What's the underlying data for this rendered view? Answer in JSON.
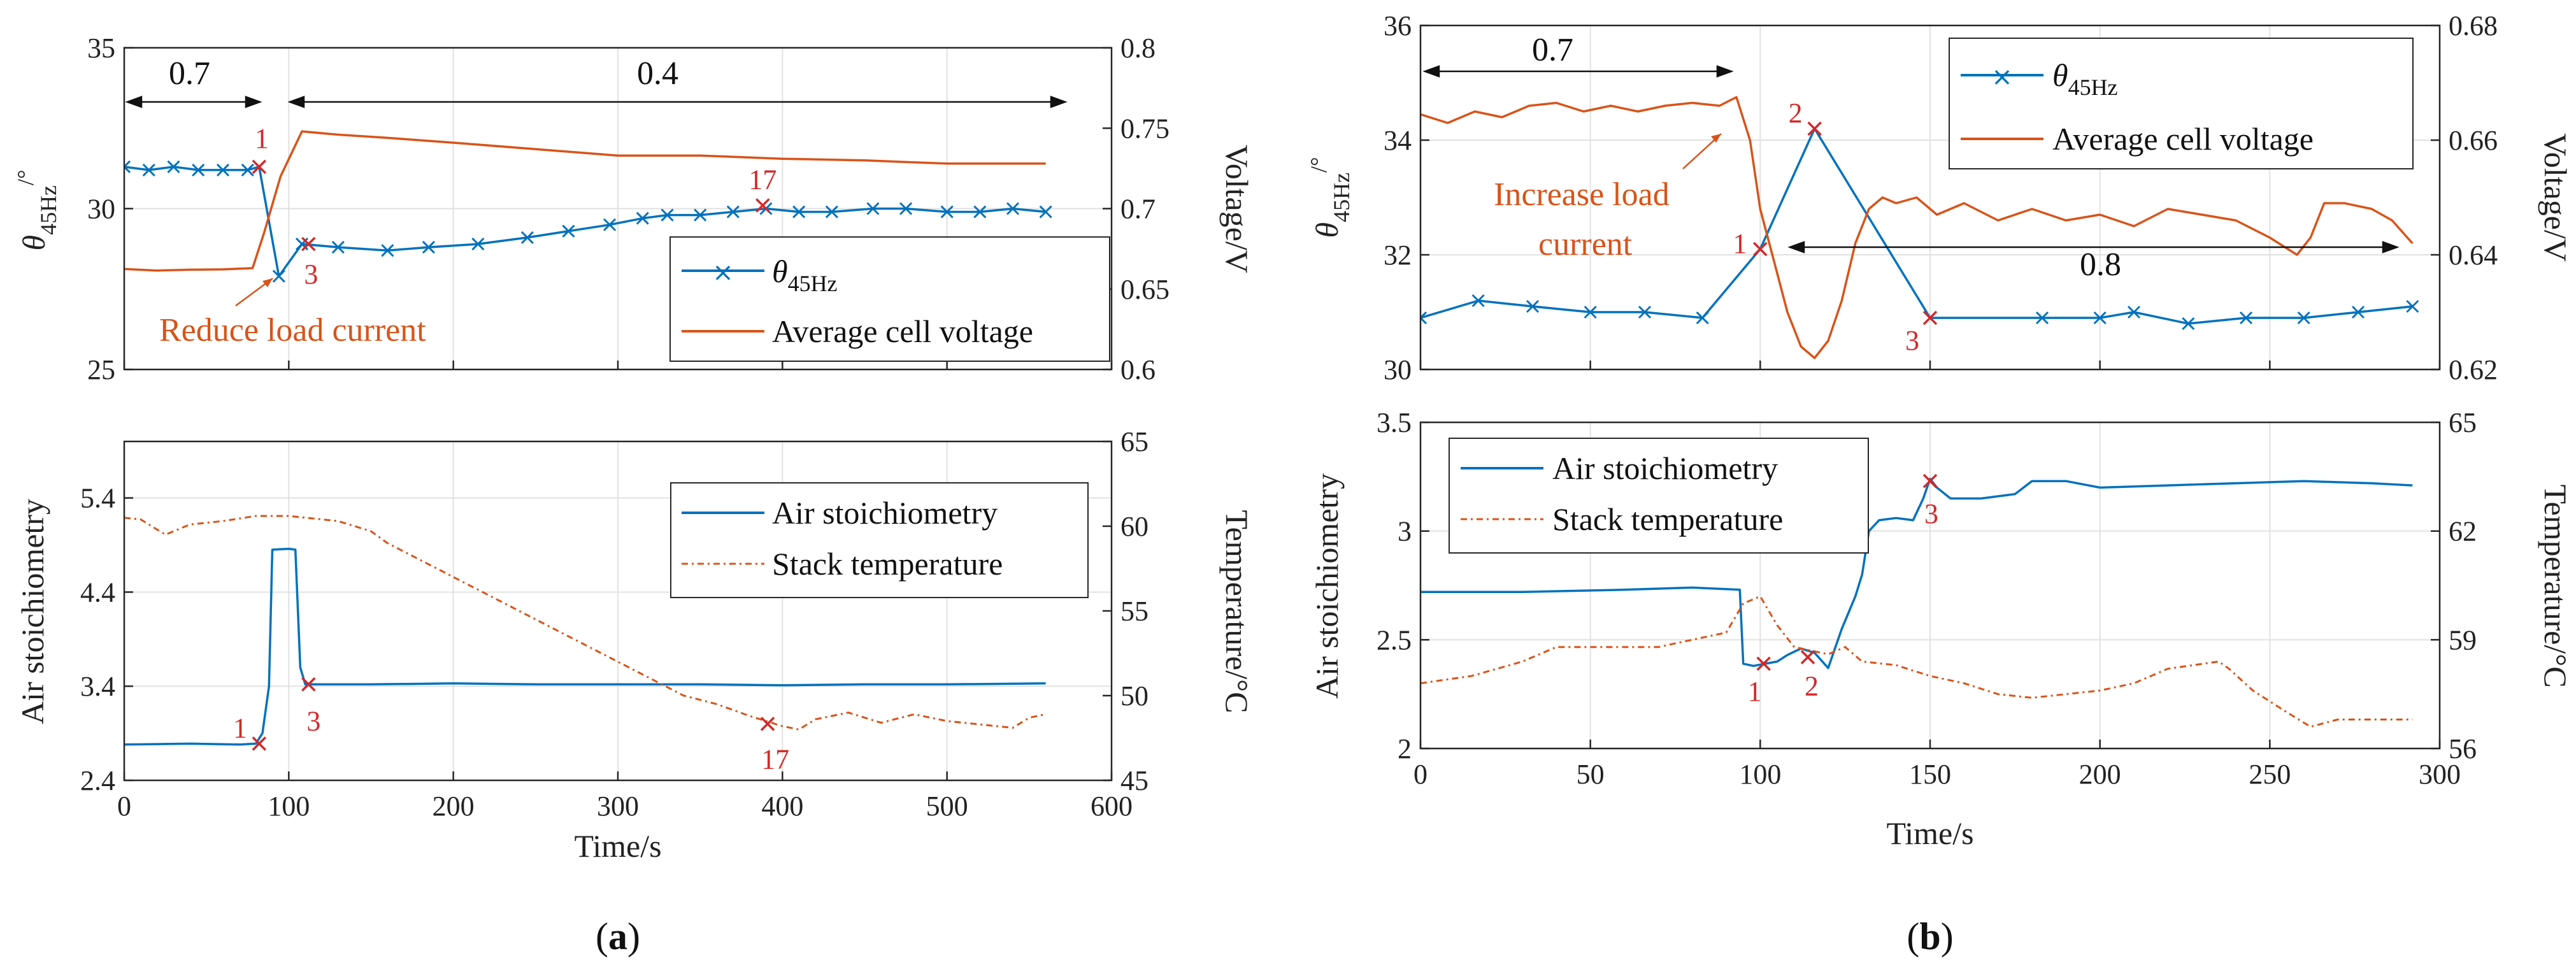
{
  "colors": {
    "blue": "#0072bd",
    "orange": "#d95319",
    "red": "#d62728",
    "axis": "#262626",
    "grid": "#e1e1e1"
  },
  "captions": {
    "a": "a",
    "b": "b"
  },
  "chart_data": [
    {
      "id": "a-top",
      "type": "line",
      "xlim": [
        0,
        600
      ],
      "xticks": [
        0,
        100,
        200,
        300,
        400,
        500,
        600
      ],
      "ylim_left": [
        25,
        35
      ],
      "yticks_left": [
        25,
        30,
        35
      ],
      "ylabel_left": "θ45Hz/°",
      "ylim_right": [
        0.6,
        0.8
      ],
      "yticks_right": [
        0.6,
        0.65,
        0.7,
        0.75,
        0.8
      ],
      "ylabel_right": "Voltage/V",
      "series": [
        {
          "name": "θ45Hz",
          "axis": "left",
          "color": "#0072bd",
          "marker": "x",
          "x": [
            0,
            15,
            30,
            45,
            60,
            75,
            82,
            94,
            108,
            130,
            160,
            185,
            215,
            245,
            270,
            295,
            315,
            330,
            350,
            370,
            390,
            410,
            430,
            455,
            475,
            500,
            520,
            540,
            560
          ],
          "y": [
            31.3,
            31.2,
            31.3,
            31.2,
            31.2,
            31.2,
            31.3,
            27.9,
            28.9,
            28.8,
            28.7,
            28.8,
            28.9,
            29.1,
            29.3,
            29.5,
            29.7,
            29.8,
            29.8,
            29.9,
            30.0,
            29.9,
            29.9,
            30.0,
            30.0,
            29.9,
            29.9,
            30.0,
            29.9
          ]
        },
        {
          "name": "Average cell voltage",
          "axis": "right",
          "color": "#d95319",
          "x": [
            0,
            20,
            40,
            60,
            78,
            85,
            95,
            108,
            130,
            160,
            200,
            250,
            300,
            350,
            400,
            450,
            500,
            560
          ],
          "y": [
            0.6625,
            0.6615,
            0.662,
            0.6622,
            0.663,
            0.685,
            0.72,
            0.748,
            0.746,
            0.744,
            0.741,
            0.737,
            0.733,
            0.733,
            0.731,
            0.73,
            0.728,
            0.728
          ]
        }
      ],
      "marks": [
        {
          "label": "1",
          "x": 82,
          "y": 31.3
        },
        {
          "label": "3",
          "x": 112,
          "y": 28.9
        },
        {
          "label": "17",
          "x": 388,
          "y": 30.1
        }
      ],
      "annotations": [
        {
          "text": "0.7",
          "x": 40,
          "y": 34.0
        },
        {
          "text": "0.4",
          "x": 330,
          "y": 34.0
        },
        {
          "text": "Reduce load current",
          "x": 120,
          "y": 26.3
        }
      ]
    },
    {
      "id": "a-bottom",
      "type": "line",
      "xlim": [
        0,
        600
      ],
      "xticks": [
        0,
        100,
        200,
        300,
        400,
        500,
        600
      ],
      "xlabel": "Time/s",
      "ylim_left": [
        2.4,
        6.0
      ],
      "yticks_left": [
        2.4,
        3.4,
        4.4,
        5.4
      ],
      "ylabel_left": "Air stoichiometry",
      "ylim_right": [
        45,
        65
      ],
      "yticks_right": [
        45,
        50,
        55,
        60,
        65
      ],
      "ylabel_right": "Temperature/°C",
      "series": [
        {
          "name": "Air stoichiometry",
          "axis": "left",
          "color": "#0072bd",
          "x": [
            0,
            40,
            70,
            80,
            84,
            88,
            90,
            100,
            104,
            107,
            110,
            150,
            200,
            250,
            300,
            350,
            400,
            450,
            500,
            560
          ],
          "y": [
            2.78,
            2.79,
            2.78,
            2.79,
            2.9,
            3.4,
            4.85,
            4.86,
            4.85,
            3.6,
            3.42,
            3.42,
            3.43,
            3.42,
            3.42,
            3.42,
            3.41,
            3.42,
            3.42,
            3.43
          ]
        },
        {
          "name": "Stack temperature",
          "axis": "right",
          "color": "#d95319",
          "dash": "6 5",
          "x": [
            0,
            10,
            25,
            40,
            60,
            80,
            100,
            130,
            150,
            160,
            180,
            200,
            250,
            300,
            340,
            360,
            380,
            400,
            410,
            420,
            440,
            460,
            480,
            500,
            520,
            540,
            550,
            560
          ],
          "y": [
            60.5,
            60.4,
            59.5,
            60.1,
            60.3,
            60.6,
            60.6,
            60.3,
            59.7,
            59.0,
            58.0,
            57.0,
            54.5,
            52.0,
            50.0,
            49.5,
            48.8,
            48.2,
            48.0,
            48.6,
            49.0,
            48.4,
            48.9,
            48.5,
            48.3,
            48.1,
            48.7,
            48.9
          ]
        }
      ],
      "marks": [
        {
          "label": "1",
          "x": 82,
          "y": 2.79
        },
        {
          "label": "3",
          "x": 112,
          "y": 3.42
        },
        {
          "label": "17",
          "x": 391,
          "y": 3.0
        }
      ]
    },
    {
      "id": "b-top",
      "type": "line",
      "xlim": [
        0,
        300
      ],
      "xticks": [
        0,
        50,
        100,
        150,
        200,
        250,
        300
      ],
      "ylim_left": [
        30,
        36
      ],
      "yticks_left": [
        30,
        32,
        34,
        36
      ],
      "ylabel_left": "θ45Hz/°",
      "ylim_right": [
        0.62,
        0.68
      ],
      "yticks_right": [
        0.62,
        0.64,
        0.66,
        0.68
      ],
      "ylabel_right": "Voltage/V",
      "series": [
        {
          "name": "θ45Hz",
          "axis": "left",
          "color": "#0072bd",
          "marker": "x",
          "x": [
            0,
            17,
            33,
            50,
            66,
            83,
            100,
            116,
            150,
            183,
            200,
            210,
            226,
            243,
            260,
            276,
            292
          ],
          "y": [
            30.9,
            31.2,
            31.1,
            31.0,
            31.0,
            30.9,
            32.1,
            34.2,
            30.9,
            30.9,
            30.9,
            31.0,
            30.8,
            30.9,
            30.9,
            31.0,
            31.1
          ]
        },
        {
          "name": "Average cell voltage",
          "axis": "right",
          "color": "#d95319",
          "x": [
            0,
            8,
            16,
            24,
            32,
            40,
            48,
            56,
            64,
            72,
            80,
            88,
            93,
            97,
            100,
            104,
            108,
            112,
            116,
            120,
            124,
            128,
            132,
            136,
            140,
            146,
            152,
            160,
            170,
            180,
            190,
            200,
            210,
            220,
            230,
            240,
            250,
            258,
            262,
            266,
            272,
            280,
            286,
            292
          ],
          "y": [
            0.6645,
            0.663,
            0.665,
            0.664,
            0.666,
            0.6665,
            0.665,
            0.666,
            0.665,
            0.666,
            0.6665,
            0.666,
            0.6675,
            0.66,
            0.648,
            0.639,
            0.63,
            0.624,
            0.622,
            0.625,
            0.632,
            0.642,
            0.648,
            0.65,
            0.649,
            0.65,
            0.647,
            0.649,
            0.646,
            0.648,
            0.646,
            0.647,
            0.645,
            0.648,
            0.647,
            0.646,
            0.643,
            0.64,
            0.643,
            0.649,
            0.649,
            0.648,
            0.646,
            0.642
          ]
        }
      ],
      "marks": [
        {
          "label": "1",
          "x": 100,
          "y": 32.1
        },
        {
          "label": "2",
          "x": 116,
          "y": 34.2
        },
        {
          "label": "3",
          "x": 150,
          "y": 30.9
        }
      ],
      "annotations": [
        {
          "text": "0.7",
          "x": 47,
          "y": 35.4
        },
        {
          "text": "0.8",
          "x": 196,
          "y": 31.3
        },
        {
          "text": "Increase load",
          "x": 68,
          "y": 32.9
        },
        {
          "text": "current",
          "x": 47,
          "y": 31.9
        }
      ]
    },
    {
      "id": "b-bottom",
      "type": "line",
      "xlim": [
        0,
        300
      ],
      "xticks": [
        0,
        50,
        100,
        150,
        200,
        250,
        300
      ],
      "xlabel": "Time/s",
      "ylim_left": [
        2,
        3.5
      ],
      "yticks_left": [
        2,
        2.5,
        3,
        3.5
      ],
      "ylabel_left": "Air stoichiometry",
      "ylim_right": [
        56,
        65
      ],
      "yticks_right": [
        56,
        59,
        62,
        65
      ],
      "ylabel_right": "Temperature/°C",
      "series": [
        {
          "name": "Air stoichiometry",
          "axis": "left",
          "color": "#0072bd",
          "x": [
            0,
            30,
            60,
            80,
            94,
            95,
            98,
            105,
            108,
            112,
            116,
            120,
            124,
            128,
            130,
            132,
            135,
            140,
            145,
            148,
            150,
            152,
            156,
            165,
            175,
            180,
            190,
            200,
            220,
            240,
            260,
            280,
            292
          ],
          "y": [
            2.72,
            2.72,
            2.73,
            2.74,
            2.73,
            2.39,
            2.38,
            2.4,
            2.43,
            2.46,
            2.44,
            2.37,
            2.55,
            2.7,
            2.8,
            3.0,
            3.05,
            3.06,
            3.05,
            3.15,
            3.24,
            3.2,
            3.15,
            3.15,
            3.17,
            3.23,
            3.23,
            3.2,
            3.21,
            3.22,
            3.23,
            3.22,
            3.21
          ]
        },
        {
          "name": "Stack temperature",
          "axis": "right",
          "color": "#d95319",
          "dash": "6 5",
          "x": [
            0,
            15,
            30,
            40,
            50,
            60,
            70,
            80,
            90,
            95,
            100,
            105,
            110,
            120,
            125,
            130,
            140,
            150,
            160,
            170,
            180,
            200,
            210,
            220,
            235,
            238,
            245,
            255,
            262,
            270,
            292
          ],
          "y": [
            57.8,
            58.0,
            58.4,
            58.8,
            58.8,
            58.8,
            58.8,
            59.0,
            59.2,
            60.0,
            60.2,
            59.4,
            58.8,
            58.6,
            58.8,
            58.4,
            58.3,
            58.0,
            57.8,
            57.5,
            57.4,
            57.6,
            57.8,
            58.2,
            58.4,
            58.2,
            57.6,
            57.0,
            56.6,
            56.8,
            56.8
          ]
        }
      ],
      "marks": [
        {
          "label": "1",
          "x": 101,
          "y": 2.39
        },
        {
          "label": "2",
          "x": 114,
          "y": 2.42
        },
        {
          "label": "3",
          "x": 150,
          "y": 3.23
        }
      ]
    }
  ]
}
